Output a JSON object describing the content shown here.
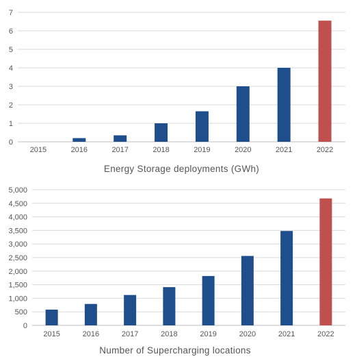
{
  "colors": {
    "normal_bar": "#1f4e8c",
    "highlight_bar": "#c0504d",
    "text": "#555555",
    "grid": "#d9d9d9"
  },
  "chart_data": [
    {
      "type": "bar",
      "title": "Energy Storage deployments (GWh)",
      "categories": [
        "2015",
        "2016",
        "2017",
        "2018",
        "2019",
        "2020",
        "2021",
        "2022"
      ],
      "values": [
        0.0,
        0.2,
        0.35,
        1.0,
        1.65,
        3.0,
        4.0,
        6.55
      ],
      "highlight_index": 7,
      "ylim": [
        0,
        7
      ],
      "yticks": [
        0,
        1,
        2,
        3,
        4,
        5,
        6,
        7
      ],
      "ytick_labels": [
        "0",
        "1",
        "2",
        "3",
        "4",
        "5",
        "6",
        "7"
      ],
      "grid": true,
      "legend": "none"
    },
    {
      "type": "bar",
      "title": "Number of Supercharging locations",
      "categories": [
        "2015",
        "2016",
        "2017",
        "2018",
        "2019",
        "2020",
        "2021",
        "2022"
      ],
      "values": [
        580,
        790,
        1120,
        1410,
        1820,
        2560,
        3480,
        4680
      ],
      "highlight_index": 7,
      "ylim": [
        0,
        5000
      ],
      "yticks": [
        0,
        500,
        1000,
        1500,
        2000,
        2500,
        3000,
        3500,
        4000,
        4500,
        5000
      ],
      "ytick_labels": [
        "0",
        "500",
        "1,000",
        "1,500",
        "2,000",
        "2,500",
        "3,000",
        "3,500",
        "4,000",
        "4,500",
        "5,000"
      ],
      "grid": true,
      "legend": "none"
    }
  ]
}
